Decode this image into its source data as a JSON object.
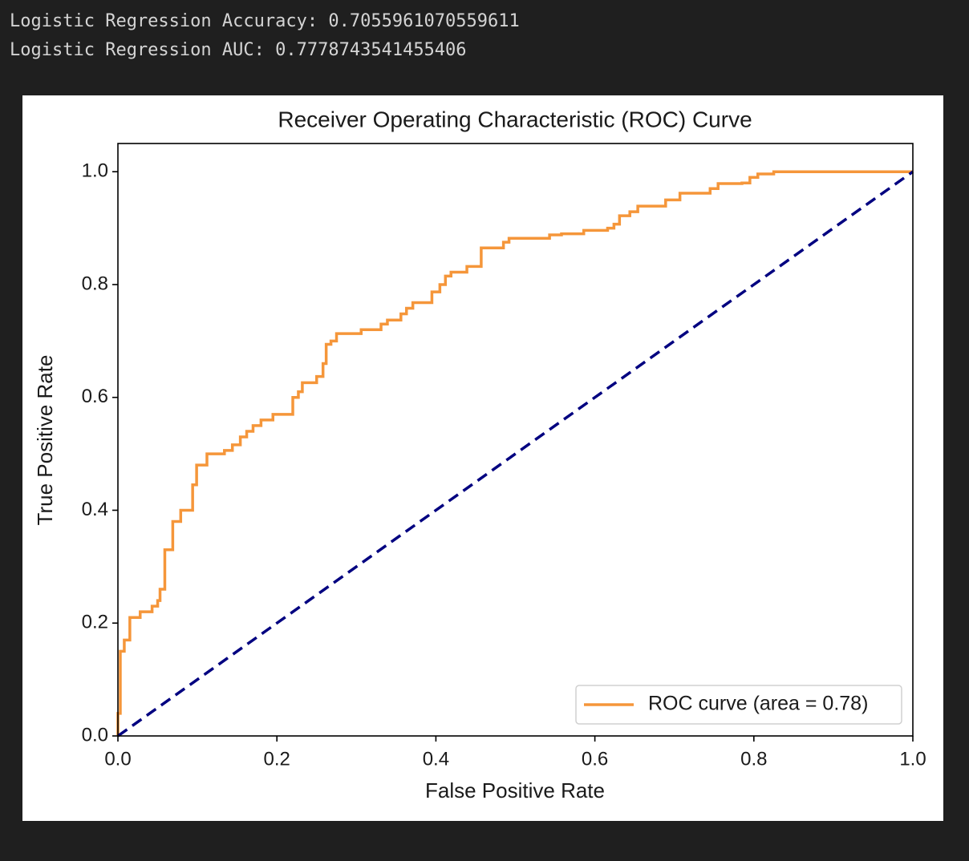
{
  "output_lines": [
    "Logistic Regression Accuracy: 0.7055961070559611",
    "Logistic Regression AUC: 0.7778743541455406"
  ],
  "chart_data": {
    "type": "line",
    "title": "Receiver Operating Characteristic (ROC) Curve",
    "x_label": "False Positive Rate",
    "y_label": "True Positive Rate",
    "xlim": [
      0,
      1
    ],
    "ylim": [
      0,
      1.05
    ],
    "xticks": [
      {
        "value": 0,
        "label": "0.0"
      },
      0.2,
      0.4,
      0.6,
      0.8,
      {
        "value": 1,
        "label": "1.0"
      }
    ],
    "yticks": [
      {
        "value": 0,
        "label": "0.0"
      },
      0.2,
      0.4,
      0.6,
      0.8,
      {
        "value": 1,
        "label": "1.0"
      }
    ],
    "legend": "lower right",
    "series": [
      {
        "name": "ROC curve (area = 0.78)",
        "color": "#f5963a",
        "linestyle": "solid",
        "x": [
          0,
          0,
          0.003,
          0.003,
          0.008,
          0.008,
          0.015,
          0.015,
          0.028,
          0.028,
          0.043,
          0.043,
          0.05,
          0.05,
          0.053,
          0.053,
          0.059,
          0.059,
          0.069,
          0.069,
          0.079,
          0.079,
          0.094,
          0.094,
          0.099,
          0.099,
          0.112,
          0.112,
          0.134,
          0.134,
          0.144,
          0.144,
          0.154,
          0.154,
          0.162,
          0.162,
          0.17,
          0.17,
          0.18,
          0.18,
          0.195,
          0.195,
          0.22,
          0.22,
          0.227,
          0.227,
          0.232,
          0.232,
          0.25,
          0.25,
          0.258,
          0.258,
          0.262,
          0.262,
          0.268,
          0.268,
          0.275,
          0.275,
          0.306,
          0.306,
          0.331,
          0.331,
          0.339,
          0.339,
          0.356,
          0.356,
          0.363,
          0.363,
          0.371,
          0.371,
          0.395,
          0.395,
          0.405,
          0.405,
          0.412,
          0.412,
          0.419,
          0.419,
          0.439,
          0.439,
          0.457,
          0.457,
          0.485,
          0.485,
          0.492,
          0.492,
          0.543,
          0.543,
          0.558,
          0.558,
          0.586,
          0.586,
          0.616,
          0.616,
          0.624,
          0.624,
          0.631,
          0.631,
          0.644,
          0.644,
          0.654,
          0.654,
          0.689,
          0.689,
          0.707,
          0.707,
          0.745,
          0.745,
          0.755,
          0.755,
          0.785,
          0.785,
          0.795,
          0.795,
          0.805,
          0.805,
          0.825,
          0.825,
          1
        ],
        "values": [
          0,
          0.04,
          0.04,
          0.15,
          0.15,
          0.17,
          0.17,
          0.21,
          0.21,
          0.22,
          0.22,
          0.23,
          0.23,
          0.24,
          0.24,
          0.26,
          0.26,
          0.33,
          0.33,
          0.38,
          0.38,
          0.4,
          0.4,
          0.445,
          0.445,
          0.48,
          0.48,
          0.5,
          0.5,
          0.506,
          0.506,
          0.516,
          0.516,
          0.53,
          0.53,
          0.54,
          0.54,
          0.55,
          0.55,
          0.56,
          0.56,
          0.57,
          0.57,
          0.6,
          0.6,
          0.61,
          0.61,
          0.626,
          0.626,
          0.637,
          0.637,
          0.66,
          0.66,
          0.694,
          0.694,
          0.7,
          0.7,
          0.713,
          0.713,
          0.72,
          0.72,
          0.73,
          0.73,
          0.737,
          0.737,
          0.748,
          0.748,
          0.758,
          0.758,
          0.768,
          0.768,
          0.787,
          0.787,
          0.8,
          0.8,
          0.815,
          0.815,
          0.822,
          0.822,
          0.832,
          0.832,
          0.865,
          0.865,
          0.875,
          0.875,
          0.882,
          0.882,
          0.888,
          0.888,
          0.89,
          0.89,
          0.896,
          0.896,
          0.9,
          0.9,
          0.907,
          0.907,
          0.922,
          0.922,
          0.929,
          0.929,
          0.939,
          0.939,
          0.95,
          0.95,
          0.962,
          0.962,
          0.97,
          0.97,
          0.979,
          0.979,
          0.98,
          0.98,
          0.99,
          0.99,
          0.996,
          0.996,
          1,
          1
        ]
      },
      {
        "color": "#000080",
        "linestyle": "dashed",
        "x": [
          0,
          1
        ],
        "values": [
          0,
          1
        ]
      }
    ]
  }
}
